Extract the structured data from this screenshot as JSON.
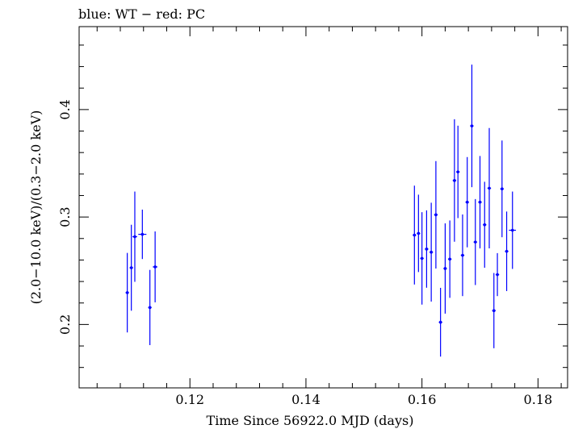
{
  "chart_data": {
    "type": "scatter",
    "title": "blue: WT − red: PC",
    "xlabel": "Time Since 56922.0 MJD (days)",
    "ylabel": "(2.0−10.0 keV)/(0.3−2.0 keV)",
    "xlim": [
      0.1009,
      0.1851
    ],
    "ylim": [
      0.141,
      0.4772
    ],
    "xticks": [
      0.12,
      0.14,
      0.16,
      0.18
    ],
    "xtick_labels": [
      "0.12",
      "0.14",
      "0.16",
      "0.18"
    ],
    "yticks": [
      0.2,
      0.3,
      0.4
    ],
    "ytick_labels": [
      "0.2",
      "0.3",
      "0.4"
    ],
    "grid": false,
    "colors": {
      "series": "#0000ff",
      "axes": "#000000"
    },
    "series": [
      {
        "points": [
          {
            "x": 0.1092,
            "xerr": 0.0003,
            "y": 0.2296,
            "yerr": 0.037
          },
          {
            "x": 0.1099,
            "xerr": 0.0003,
            "y": 0.2528,
            "yerr": 0.04
          },
          {
            "x": 0.1105,
            "xerr": 0.0004,
            "y": 0.2817,
            "yerr": 0.042
          },
          {
            "x": 0.1118,
            "xerr": 0.0007,
            "y": 0.2839,
            "yerr": 0.023
          },
          {
            "x": 0.1131,
            "xerr": 0.0003,
            "y": 0.2158,
            "yerr": 0.035
          },
          {
            "x": 0.114,
            "xerr": 0.0004,
            "y": 0.2536,
            "yerr": 0.033
          },
          {
            "x": 0.1587,
            "xerr": 0.0003,
            "y": 0.2832,
            "yerr": 0.046
          },
          {
            "x": 0.1594,
            "xerr": 0.0003,
            "y": 0.2848,
            "yerr": 0.036
          },
          {
            "x": 0.16,
            "xerr": 0.0003,
            "y": 0.2615,
            "yerr": 0.043
          },
          {
            "x": 0.1608,
            "xerr": 0.0003,
            "y": 0.2702,
            "yerr": 0.036
          },
          {
            "x": 0.1616,
            "xerr": 0.0003,
            "y": 0.2673,
            "yerr": 0.046
          },
          {
            "x": 0.1624,
            "xerr": 0.0003,
            "y": 0.3021,
            "yerr": 0.05
          },
          {
            "x": 0.1632,
            "xerr": 0.0003,
            "y": 0.2021,
            "yerr": 0.032
          },
          {
            "x": 0.164,
            "xerr": 0.0003,
            "y": 0.2521,
            "yerr": 0.042
          },
          {
            "x": 0.1648,
            "xerr": 0.0003,
            "y": 0.2608,
            "yerr": 0.036
          },
          {
            "x": 0.1656,
            "xerr": 0.0003,
            "y": 0.334,
            "yerr": 0.057
          },
          {
            "x": 0.1662,
            "xerr": 0.0003,
            "y": 0.342,
            "yerr": 0.043
          },
          {
            "x": 0.167,
            "xerr": 0.0003,
            "y": 0.2644,
            "yerr": 0.038
          },
          {
            "x": 0.1678,
            "xerr": 0.0003,
            "y": 0.3138,
            "yerr": 0.042
          },
          {
            "x": 0.1686,
            "xerr": 0.0003,
            "y": 0.3848,
            "yerr": 0.057
          },
          {
            "x": 0.1692,
            "xerr": 0.0003,
            "y": 0.2767,
            "yerr": 0.04
          },
          {
            "x": 0.17,
            "xerr": 0.0003,
            "y": 0.3138,
            "yerr": 0.043
          },
          {
            "x": 0.1708,
            "xerr": 0.0003,
            "y": 0.2928,
            "yerr": 0.04
          },
          {
            "x": 0.1716,
            "xerr": 0.0003,
            "y": 0.3268,
            "yerr": 0.056
          },
          {
            "x": 0.1724,
            "xerr": 0.0003,
            "y": 0.2129,
            "yerr": 0.035
          },
          {
            "x": 0.173,
            "xerr": 0.0003,
            "y": 0.2464,
            "yerr": 0.02
          },
          {
            "x": 0.1738,
            "xerr": 0.0003,
            "y": 0.3262,
            "yerr": 0.045
          },
          {
            "x": 0.1746,
            "xerr": 0.0003,
            "y": 0.2681,
            "yerr": 0.037
          },
          {
            "x": 0.1756,
            "xerr": 0.0006,
            "y": 0.2877,
            "yerr": 0.036
          }
        ]
      }
    ]
  }
}
